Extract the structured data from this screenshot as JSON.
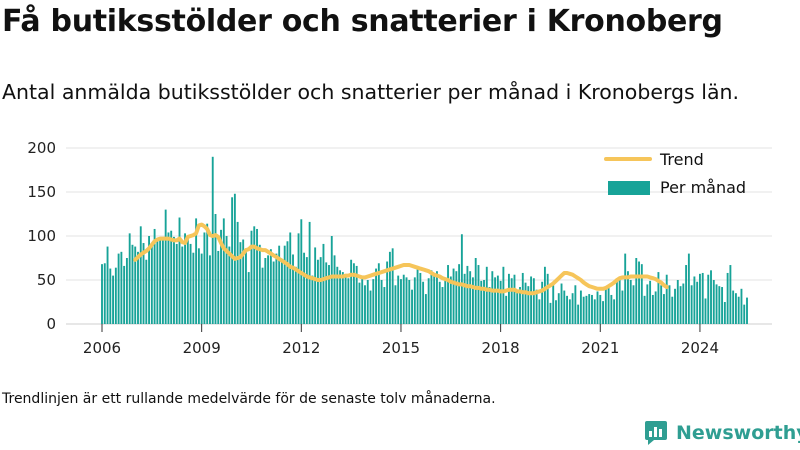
{
  "header": {
    "title": "Få butiksstölder och snatterier i Kronoberg",
    "subtitle": "Antal anmälda butiksstölder och snatterier per månad i Kronobergs län."
  },
  "footer": {
    "note": "Trendlinjen är ett rullande medelvärde för de senaste tolv månaderna.",
    "brand": "Newsworthy"
  },
  "colors": {
    "bars": "#17a398",
    "trend": "#f6c55a",
    "grid": "#e3e3e3",
    "brand": "#2f9e92"
  },
  "chart_data": {
    "type": "bar",
    "x_start": "2006-01",
    "x_end": "2024-06",
    "x_ticks": [
      "2006",
      "2009",
      "2012",
      "2015",
      "2018",
      "2021",
      "2024"
    ],
    "ylim": [
      0,
      200
    ],
    "y_ticks": [
      0,
      50,
      100,
      150,
      200
    ],
    "grid": true,
    "legend": {
      "placement": "top-right"
    },
    "series": [
      {
        "name": "Per månad",
        "type": "bar",
        "values": [
          68,
          69,
          88,
          63,
          55,
          64,
          80,
          82,
          66,
          75,
          103,
          90,
          88,
          82,
          111,
          92,
          73,
          100,
          88,
          108,
          96,
          95,
          96,
          130,
          104,
          106,
          99,
          91,
          121,
          88,
          103,
          101,
          91,
          81,
          120,
          86,
          80,
          104,
          114,
          78,
          190,
          125,
          83,
          107,
          120,
          100,
          88,
          144,
          148,
          116,
          93,
          96,
          86,
          59,
          106,
          111,
          108,
          90,
          64,
          75,
          78,
          85,
          71,
          80,
          89,
          72,
          89,
          94,
          104,
          79,
          65,
          103,
          119,
          81,
          76,
          116,
          55,
          87,
          73,
          76,
          91,
          70,
          67,
          100,
          78,
          65,
          61,
          59,
          55,
          52,
          73,
          69,
          66,
          47,
          52,
          44,
          50,
          38,
          51,
          63,
          69,
          50,
          42,
          71,
          82,
          86,
          44,
          55,
          51,
          56,
          53,
          50,
          39,
          53,
          64,
          58,
          48,
          34,
          52,
          61,
          55,
          60,
          48,
          42,
          52,
          67,
          54,
          63,
          60,
          68,
          102,
          57,
          66,
          60,
          53,
          75,
          67,
          49,
          50,
          65,
          42,
          60,
          53,
          55,
          49,
          65,
          32,
          57,
          52,
          56,
          38,
          42,
          58,
          47,
          43,
          54,
          52,
          39,
          28,
          48,
          65,
          57,
          24,
          44,
          27,
          35,
          46,
          38,
          32,
          28,
          35,
          44,
          22,
          38,
          31,
          32,
          34,
          33,
          28,
          37,
          33,
          26,
          40,
          44,
          33,
          28,
          48,
          51,
          38,
          80,
          60,
          50,
          44,
          75,
          71,
          68,
          32,
          45,
          49,
          33,
          37,
          59,
          44,
          34,
          56,
          44,
          31,
          40,
          50,
          43,
          46,
          67,
          80,
          44,
          54,
          48,
          57,
          58,
          29,
          56,
          61,
          50,
          45,
          43,
          42,
          25,
          58,
          67,
          38,
          35,
          31,
          40,
          22,
          30
        ]
      },
      {
        "name": "Trend",
        "type": "line",
        "start_index": 12,
        "values": [
          73,
          76,
          79,
          81,
          83,
          86,
          90,
          94,
          96,
          97,
          97,
          97,
          97,
          96,
          95,
          95,
          97,
          93,
          92,
          99,
          100,
          101,
          103,
          112,
          113,
          111,
          108,
          101,
          100,
          101,
          99,
          92,
          86,
          83,
          80,
          77,
          74,
          75,
          76,
          80,
          84,
          85,
          88,
          88,
          86,
          85,
          84,
          84,
          82,
          80,
          78,
          76,
          74,
          72,
          70,
          68,
          65,
          64,
          62,
          60,
          58,
          56,
          54,
          53,
          52,
          51,
          50,
          50,
          51,
          52,
          53,
          54,
          54,
          54,
          54,
          54,
          55,
          55,
          56,
          56,
          55,
          54,
          53,
          53,
          54,
          55,
          56,
          57,
          58,
          59,
          60,
          61,
          62,
          63,
          64,
          65,
          66,
          67,
          67,
          67,
          66,
          65,
          64,
          63,
          62,
          61,
          60,
          58,
          56,
          55,
          54,
          52,
          51,
          50,
          48,
          47,
          46,
          45,
          45,
          44,
          43,
          43,
          42,
          41,
          41,
          40,
          40,
          39,
          39,
          38,
          38,
          38,
          37,
          37,
          38,
          39,
          39,
          39,
          37,
          37,
          36,
          36,
          35,
          35,
          35,
          36,
          37,
          38,
          40,
          42,
          44,
          46,
          49,
          52,
          55,
          58,
          58,
          57,
          56,
          54,
          52,
          50,
          47,
          45,
          43,
          42,
          41,
          40,
          40,
          40,
          41,
          43,
          45,
          47,
          50,
          52,
          53,
          53,
          53,
          54,
          54,
          54,
          54,
          54,
          54,
          54,
          53,
          52,
          51,
          49,
          47,
          44,
          42
        ]
      }
    ]
  }
}
